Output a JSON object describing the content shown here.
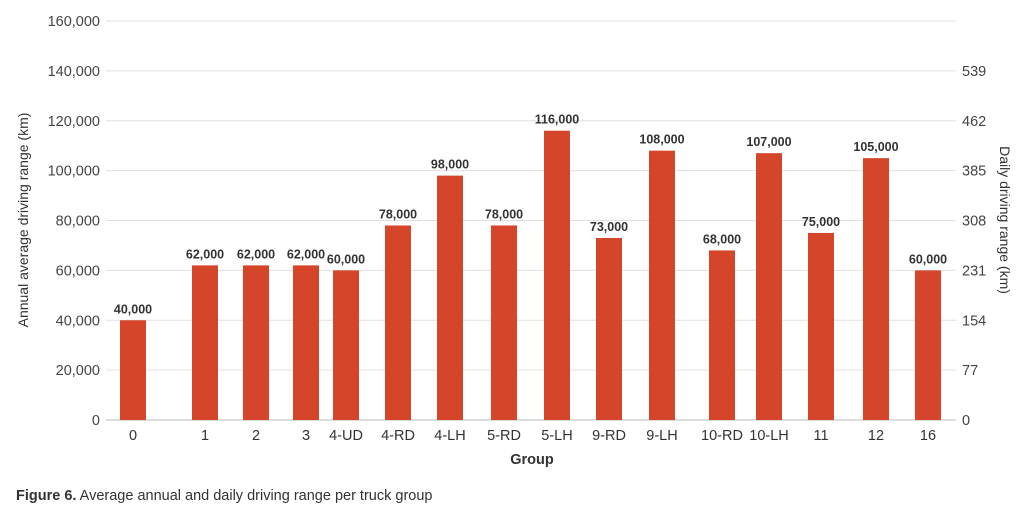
{
  "chart_data": {
    "type": "bar",
    "categories": [
      "0",
      "1",
      "2",
      "3",
      "4-UD",
      "4-RD",
      "4-LH",
      "5-RD",
      "5-LH",
      "9-RD",
      "9-LH",
      "10-RD",
      "10-LH",
      "11",
      "12",
      "16"
    ],
    "values": [
      40000,
      62000,
      62000,
      62000,
      60000,
      78000,
      98000,
      78000,
      116000,
      73000,
      108000,
      68000,
      107000,
      75000,
      105000,
      60000
    ],
    "value_labels": [
      "40,000",
      "62,000",
      "62,000",
      "62,000",
      "60,000",
      "78,000",
      "98,000",
      "78,000",
      "116,000",
      "73,000",
      "108,000",
      "68,000",
      "107,000",
      "75,000",
      "105,000",
      "60,000"
    ],
    "xlabel": "Group",
    "ylabel": "Annual average driving range (km)",
    "y2label": "Daily driving range (km)",
    "ylim": [
      0,
      160000
    ],
    "yticks": [
      "0",
      "20,000",
      "40,000",
      "60,000",
      "80,000",
      "100,000",
      "120,000",
      "140,000",
      "160,000"
    ],
    "y2ticks": [
      "0",
      "77",
      "154",
      "231",
      "308",
      "385",
      "462",
      "539"
    ],
    "bar_color": "#d4452a",
    "grid": true
  },
  "caption": {
    "label": "Figure 6.",
    "text": " Average annual and daily driving range per truck group"
  }
}
